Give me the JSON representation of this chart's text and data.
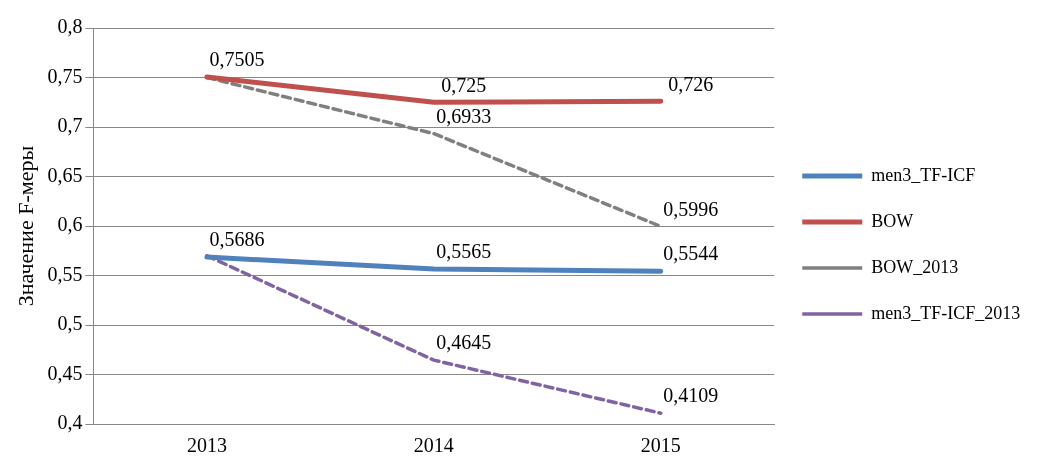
{
  "chart_data": {
    "type": "line",
    "ylabel": "Значение F-меры",
    "categories": [
      "2013",
      "2014",
      "2015"
    ],
    "series": [
      {
        "name": "men3_TF-ICF",
        "color": "#4f81bd",
        "line_style": "solid",
        "values": [
          0.5686,
          0.5565,
          0.5544
        ],
        "value_labels": [
          "0,5686",
          "0,5565",
          "0,5544"
        ]
      },
      {
        "name": "BOW",
        "color": "#c0504d",
        "line_style": "solid",
        "values": [
          0.7505,
          0.725,
          0.726
        ],
        "value_labels": [
          "0,7505",
          "0,725",
          "0,726"
        ]
      },
      {
        "name": "BOW_2013",
        "color": "#808080",
        "line_style": "dashed",
        "values": [
          0.75,
          0.6933,
          0.5996
        ],
        "value_labels": [
          null,
          "0,6933",
          "0,5996"
        ]
      },
      {
        "name": "men3_TF-ICF_2013",
        "color": "#8064a2",
        "line_style": "dashed",
        "values": [
          0.57,
          0.4645,
          0.4109
        ],
        "value_labels": [
          null,
          "0,4645",
          "0,4109"
        ]
      }
    ],
    "ylim": [
      0.4,
      0.8
    ],
    "yticks": [
      {
        "value": 0.4,
        "label": "0,4"
      },
      {
        "value": 0.45,
        "label": "0,45"
      },
      {
        "value": 0.5,
        "label": "0,5"
      },
      {
        "value": 0.55,
        "label": "0,55"
      },
      {
        "value": 0.6,
        "label": "0,6"
      },
      {
        "value": 0.65,
        "label": "0,65"
      },
      {
        "value": 0.7,
        "label": "0,7"
      },
      {
        "value": 0.75,
        "label": "0,75"
      },
      {
        "value": 0.8,
        "label": "0,8"
      }
    ],
    "grid": "y",
    "legend": "right",
    "marker": "none"
  }
}
